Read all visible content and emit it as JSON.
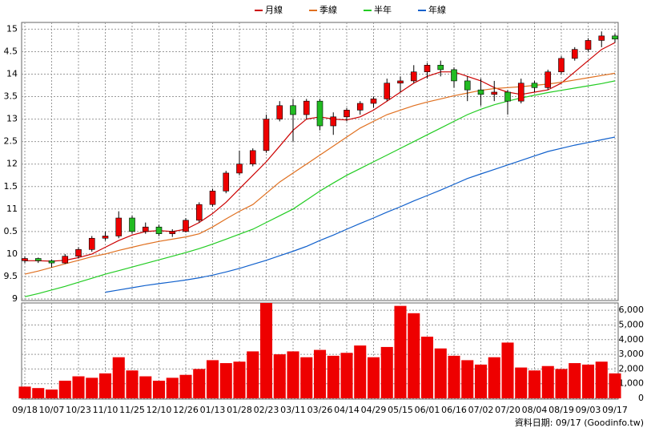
{
  "chart_data": {
    "type": "candlestick",
    "legend": [
      {
        "name": "月線",
        "color": "#cc0000"
      },
      {
        "name": "季線",
        "color": "#e07020"
      },
      {
        "name": "半年",
        "color": "#22cc22"
      },
      {
        "name": "年線",
        "color": "#1060cc"
      }
    ],
    "categories": [
      "09/18",
      null,
      "10/07",
      null,
      "10/23",
      null,
      "11/10",
      null,
      "11/25",
      null,
      "12/10",
      null,
      "12/26",
      null,
      "01/13",
      null,
      "01/28",
      null,
      "02/23",
      null,
      "03/11",
      null,
      "03/26",
      null,
      "04/14",
      null,
      "04/29",
      null,
      "05/15",
      null,
      "06/01",
      null,
      "06/16",
      null,
      "07/02",
      null,
      "07/20",
      null,
      "08/04",
      null,
      "08/19",
      null,
      "09/03",
      null,
      "09/17"
    ],
    "ohlc": [
      [
        9.85,
        9.95,
        9.8,
        9.9
      ],
      [
        9.9,
        9.92,
        9.8,
        9.85
      ],
      [
        9.85,
        9.88,
        9.7,
        9.8
      ],
      [
        9.8,
        10.0,
        9.78,
        9.95
      ],
      [
        9.95,
        10.15,
        9.9,
        10.1
      ],
      [
        10.1,
        10.4,
        10.05,
        10.35
      ],
      [
        10.35,
        10.5,
        10.3,
        10.4
      ],
      [
        10.4,
        10.95,
        10.35,
        10.8
      ],
      [
        10.8,
        10.85,
        10.45,
        10.5
      ],
      [
        10.5,
        10.7,
        10.45,
        10.6
      ],
      [
        10.6,
        10.65,
        10.4,
        10.45
      ],
      [
        10.45,
        10.55,
        10.38,
        10.5
      ],
      [
        10.5,
        10.8,
        10.48,
        10.75
      ],
      [
        10.75,
        11.15,
        10.7,
        11.1
      ],
      [
        11.1,
        11.45,
        11.05,
        11.4
      ],
      [
        11.4,
        11.85,
        11.35,
        11.8
      ],
      [
        11.8,
        12.3,
        11.75,
        12.0
      ],
      [
        12.0,
        12.35,
        11.95,
        12.3
      ],
      [
        12.3,
        13.1,
        12.25,
        13.0
      ],
      [
        13.0,
        13.4,
        12.95,
        13.3
      ],
      [
        13.3,
        13.45,
        12.5,
        13.1
      ],
      [
        13.1,
        13.45,
        13.0,
        13.4
      ],
      [
        13.4,
        13.45,
        12.75,
        12.85
      ],
      [
        12.85,
        13.15,
        12.65,
        13.05
      ],
      [
        13.05,
        13.25,
        12.95,
        13.2
      ],
      [
        13.2,
        13.4,
        13.1,
        13.35
      ],
      [
        13.35,
        13.5,
        13.25,
        13.45
      ],
      [
        13.45,
        13.9,
        13.4,
        13.8
      ],
      [
        13.8,
        13.95,
        13.6,
        13.85
      ],
      [
        13.85,
        14.2,
        13.8,
        14.05
      ],
      [
        14.05,
        14.25,
        13.9,
        14.2
      ],
      [
        14.2,
        14.3,
        13.95,
        14.1
      ],
      [
        14.1,
        14.15,
        13.7,
        13.85
      ],
      [
        13.85,
        13.95,
        13.4,
        13.65
      ],
      [
        13.65,
        13.9,
        13.3,
        13.55
      ],
      [
        13.55,
        13.85,
        13.4,
        13.6
      ],
      [
        13.6,
        13.65,
        13.1,
        13.4
      ],
      [
        13.4,
        13.9,
        13.35,
        13.8
      ],
      [
        13.8,
        13.85,
        13.6,
        13.7
      ],
      [
        13.7,
        14.1,
        13.65,
        14.05
      ],
      [
        14.05,
        14.4,
        14.0,
        14.35
      ],
      [
        14.35,
        14.6,
        14.3,
        14.55
      ],
      [
        14.55,
        14.8,
        14.5,
        14.75
      ],
      [
        14.75,
        14.95,
        14.6,
        14.85
      ],
      [
        14.85,
        14.9,
        14.7,
        14.78
      ]
    ],
    "up_color": "#ee0000",
    "down_color": "#22bb22",
    "series": [
      {
        "name": "月線",
        "color": "#cc0000",
        "values": [
          9.85,
          9.85,
          9.84,
          9.86,
          9.92,
          10.0,
          10.15,
          10.3,
          10.42,
          10.5,
          10.52,
          10.5,
          10.55,
          10.7,
          10.9,
          11.15,
          11.45,
          11.75,
          12.05,
          12.4,
          12.75,
          13.0,
          13.05,
          13.0,
          12.98,
          13.05,
          13.2,
          13.4,
          13.6,
          13.8,
          13.95,
          14.05,
          14.05,
          13.95,
          13.85,
          13.7,
          13.6,
          13.55,
          13.6,
          13.65,
          13.8,
          14.05,
          14.3,
          14.55,
          14.7
        ]
      },
      {
        "name": "季線",
        "color": "#e07020",
        "values": [
          9.55,
          9.62,
          9.7,
          9.78,
          9.86,
          9.94,
          10.0,
          10.08,
          10.15,
          10.22,
          10.28,
          10.33,
          10.38,
          10.45,
          10.6,
          10.78,
          10.95,
          11.1,
          11.35,
          11.6,
          11.8,
          12.0,
          12.2,
          12.4,
          12.6,
          12.8,
          12.95,
          13.1,
          13.2,
          13.3,
          13.38,
          13.45,
          13.52,
          13.58,
          13.64,
          13.68,
          13.7,
          13.72,
          13.75,
          13.78,
          13.82,
          13.87,
          13.92,
          13.97,
          14.02
        ]
      },
      {
        "name": "半年",
        "color": "#22cc22",
        "values": [
          9.05,
          9.12,
          9.2,
          9.28,
          9.37,
          9.46,
          9.55,
          9.63,
          9.71,
          9.79,
          9.87,
          9.95,
          10.03,
          10.12,
          10.22,
          10.33,
          10.44,
          10.55,
          10.7,
          10.85,
          11.0,
          11.2,
          11.4,
          11.58,
          11.75,
          11.9,
          12.05,
          12.2,
          12.35,
          12.5,
          12.65,
          12.8,
          12.95,
          13.1,
          13.22,
          13.32,
          13.4,
          13.47,
          13.53,
          13.59,
          13.64,
          13.69,
          13.74,
          13.79,
          13.85
        ]
      },
      {
        "name": "年線",
        "color": "#1060cc",
        "values": [
          null,
          null,
          null,
          null,
          null,
          null,
          9.15,
          9.2,
          9.25,
          9.3,
          9.34,
          9.38,
          9.42,
          9.47,
          9.53,
          9.6,
          9.68,
          9.77,
          9.86,
          9.96,
          10.06,
          10.17,
          10.3,
          10.42,
          10.55,
          10.68,
          10.8,
          10.93,
          11.05,
          11.18,
          11.3,
          11.42,
          11.55,
          11.68,
          11.78,
          11.88,
          11.98,
          12.08,
          12.18,
          12.28,
          12.35,
          12.42,
          12.48,
          12.54,
          12.6
        ]
      }
    ],
    "ylim": [
      9,
      15.15
    ],
    "yticks": [
      9,
      9.5,
      10,
      {
        "value": 10.5,
        "label": "0.5"
      },
      11,
      {
        "value": 11.5,
        "label": "1.5"
      },
      12,
      {
        "value": 12.5,
        "label": "2.5"
      },
      13,
      {
        "value": 13.5,
        "label": "3.5"
      },
      14,
      {
        "value": 14.5,
        "label": "4.5"
      },
      15
    ],
    "volume": [
      800,
      700,
      600,
      1200,
      1500,
      1400,
      1700,
      2800,
      1900,
      1500,
      1200,
      1400,
      1600,
      2000,
      2600,
      2400,
      2500,
      3200,
      6500,
      3000,
      3200,
      2800,
      3300,
      2900,
      3100,
      3600,
      2800,
      3500,
      6300,
      5800,
      4200,
      3400,
      2900,
      2600,
      2300,
      2800,
      3800,
      2100,
      1900,
      2200,
      2000,
      2400,
      2300,
      2500,
      1700
    ],
    "volume_color": "#ee0000",
    "y2lim": [
      0,
      6500
    ],
    "y2ticks": [
      0,
      {
        "value": 1000,
        "label": "1,000"
      },
      {
        "value": 2000,
        "label": "2,000"
      },
      {
        "value": 3000,
        "label": "3,000"
      },
      {
        "value": 4000,
        "label": "4,000"
      },
      {
        "value": 5000,
        "label": "5,000"
      },
      {
        "value": 6000,
        "label": "6,000"
      }
    ],
    "grid": true,
    "footer": "資料日期: 09/17 (Goodinfo.tw)"
  }
}
